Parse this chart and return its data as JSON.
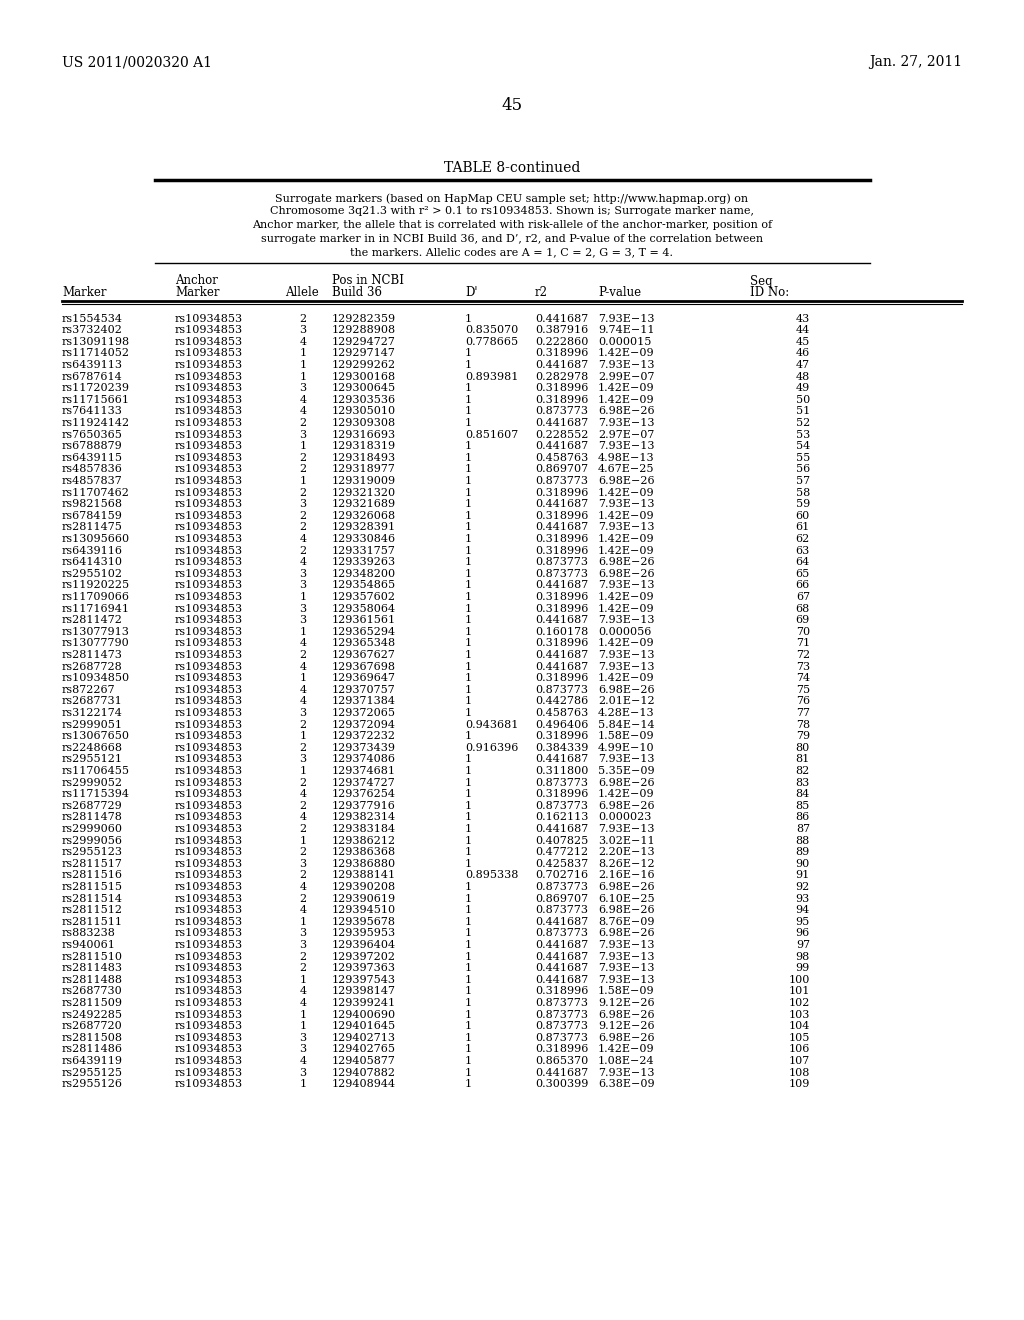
{
  "header_left": "US 2011/0020320 A1",
  "header_right": "Jan. 27, 2011",
  "page_number": "45",
  "table_title": "TABLE 8-continued",
  "caption_lines": [
    "Surrogate markers (based on HapMap CEU sample set; http://www.hapmap.org) on",
    "Chromosome 3q21.3 with r² > 0.1 to rs10934853. Shown is; Surrogate marker name,",
    "Anchor marker, the allele that is correlated with risk-allele of the anchor-marker, position of",
    "surrogate marker in in NCBI Build 36, and D’, r2, and P-value of the correlation between",
    "the markers. Allelic codes are A = 1, C = 2, G = 3, T = 4."
  ],
  "rows": [
    [
      "rs1554534",
      "rs10934853",
      "2",
      "129282359",
      "1",
      "0.441687",
      "7.93E−13",
      "43"
    ],
    [
      "rs3732402",
      "rs10934853",
      "3",
      "129288908",
      "0.835070",
      "0.387916",
      "9.74E−11",
      "44"
    ],
    [
      "rs13091198",
      "rs10934853",
      "4",
      "129294727",
      "0.778665",
      "0.222860",
      "0.000015",
      "45"
    ],
    [
      "rs11714052",
      "rs10934853",
      "1",
      "129297147",
      "1",
      "0.318996",
      "1.42E−09",
      "46"
    ],
    [
      "rs6439113",
      "rs10934853",
      "1",
      "129299262",
      "1",
      "0.441687",
      "7.93E−13",
      "47"
    ],
    [
      "rs6787614",
      "rs10934853",
      "1",
      "129300168",
      "0.893981",
      "0.282978",
      "2.99E−07",
      "48"
    ],
    [
      "rs11720239",
      "rs10934853",
      "3",
      "129300645",
      "1",
      "0.318996",
      "1.42E−09",
      "49"
    ],
    [
      "rs11715661",
      "rs10934853",
      "4",
      "129303536",
      "1",
      "0.318996",
      "1.42E−09",
      "50"
    ],
    [
      "rs7641133",
      "rs10934853",
      "4",
      "129305010",
      "1",
      "0.873773",
      "6.98E−26",
      "51"
    ],
    [
      "rs11924142",
      "rs10934853",
      "2",
      "129309308",
      "1",
      "0.441687",
      "7.93E−13",
      "52"
    ],
    [
      "rs7650365",
      "rs10934853",
      "3",
      "129316693",
      "0.851607",
      "0.228552",
      "2.97E−07",
      "53"
    ],
    [
      "rs6788879",
      "rs10934853",
      "1",
      "129318319",
      "1",
      "0.441687",
      "7.93E−13",
      "54"
    ],
    [
      "rs6439115",
      "rs10934853",
      "2",
      "129318493",
      "1",
      "0.458763",
      "4.98E−13",
      "55"
    ],
    [
      "rs4857836",
      "rs10934853",
      "2",
      "129318977",
      "1",
      "0.869707",
      "4.67E−25",
      "56"
    ],
    [
      "rs4857837",
      "rs10934853",
      "1",
      "129319009",
      "1",
      "0.873773",
      "6.98E−26",
      "57"
    ],
    [
      "rs11707462",
      "rs10934853",
      "2",
      "129321320",
      "1",
      "0.318996",
      "1.42E−09",
      "58"
    ],
    [
      "rs9821568",
      "rs10934853",
      "3",
      "129321689",
      "1",
      "0.441687",
      "7.93E−13",
      "59"
    ],
    [
      "rs6784159",
      "rs10934853",
      "2",
      "129326068",
      "1",
      "0.318996",
      "1.42E−09",
      "60"
    ],
    [
      "rs2811475",
      "rs10934853",
      "2",
      "129328391",
      "1",
      "0.441687",
      "7.93E−13",
      "61"
    ],
    [
      "rs13095660",
      "rs10934853",
      "4",
      "129330846",
      "1",
      "0.318996",
      "1.42E−09",
      "62"
    ],
    [
      "rs6439116",
      "rs10934853",
      "2",
      "129331757",
      "1",
      "0.318996",
      "1.42E−09",
      "63"
    ],
    [
      "rs6414310",
      "rs10934853",
      "4",
      "129339263",
      "1",
      "0.873773",
      "6.98E−26",
      "64"
    ],
    [
      "rs2955102",
      "rs10934853",
      "3",
      "129348200",
      "1",
      "0.873773",
      "6.98E−26",
      "65"
    ],
    [
      "rs11920225",
      "rs10934853",
      "3",
      "129354865",
      "1",
      "0.441687",
      "7.93E−13",
      "66"
    ],
    [
      "rs11709066",
      "rs10934853",
      "1",
      "129357602",
      "1",
      "0.318996",
      "1.42E−09",
      "67"
    ],
    [
      "rs11716941",
      "rs10934853",
      "3",
      "129358064",
      "1",
      "0.318996",
      "1.42E−09",
      "68"
    ],
    [
      "rs2811472",
      "rs10934853",
      "3",
      "129361561",
      "1",
      "0.441687",
      "7.93E−13",
      "69"
    ],
    [
      "rs13077913",
      "rs10934853",
      "1",
      "129365294",
      "1",
      "0.160178",
      "0.000056",
      "70"
    ],
    [
      "rs13077790",
      "rs10934853",
      "4",
      "129365348",
      "1",
      "0.318996",
      "1.42E−09",
      "71"
    ],
    [
      "rs2811473",
      "rs10934853",
      "2",
      "129367627",
      "1",
      "0.441687",
      "7.93E−13",
      "72"
    ],
    [
      "rs2687728",
      "rs10934853",
      "4",
      "129367698",
      "1",
      "0.441687",
      "7.93E−13",
      "73"
    ],
    [
      "rs10934850",
      "rs10934853",
      "1",
      "129369647",
      "1",
      "0.318996",
      "1.42E−09",
      "74"
    ],
    [
      "rs872267",
      "rs10934853",
      "4",
      "129370757",
      "1",
      "0.873773",
      "6.98E−26",
      "75"
    ],
    [
      "rs2687731",
      "rs10934853",
      "4",
      "129371384",
      "1",
      "0.442786",
      "2.01E−12",
      "76"
    ],
    [
      "rs3122174",
      "rs10934853",
      "3",
      "129372065",
      "1",
      "0.458763",
      "4.28E−13",
      "77"
    ],
    [
      "rs2999051",
      "rs10934853",
      "2",
      "129372094",
      "0.943681",
      "0.496406",
      "5.84E−14",
      "78"
    ],
    [
      "rs13067650",
      "rs10934853",
      "1",
      "129372232",
      "1",
      "0.318996",
      "1.58E−09",
      "79"
    ],
    [
      "rs2248668",
      "rs10934853",
      "2",
      "129373439",
      "0.916396",
      "0.384339",
      "4.99E−10",
      "80"
    ],
    [
      "rs2955121",
      "rs10934853",
      "3",
      "129374086",
      "1",
      "0.441687",
      "7.93E−13",
      "81"
    ],
    [
      "rs11706455",
      "rs10934853",
      "1",
      "129374681",
      "1",
      "0.311800",
      "5.35E−09",
      "82"
    ],
    [
      "rs2999052",
      "rs10934853",
      "2",
      "129374727",
      "1",
      "0.873773",
      "6.98E−26",
      "83"
    ],
    [
      "rs11715394",
      "rs10934853",
      "4",
      "129376254",
      "1",
      "0.318996",
      "1.42E−09",
      "84"
    ],
    [
      "rs2687729",
      "rs10934853",
      "2",
      "129377916",
      "1",
      "0.873773",
      "6.98E−26",
      "85"
    ],
    [
      "rs2811478",
      "rs10934853",
      "4",
      "129382314",
      "1",
      "0.162113",
      "0.000023",
      "86"
    ],
    [
      "rs2999060",
      "rs10934853",
      "2",
      "129383184",
      "1",
      "0.441687",
      "7.93E−13",
      "87"
    ],
    [
      "rs2999056",
      "rs10934853",
      "1",
      "129386212",
      "1",
      "0.407825",
      "3.02E−11",
      "88"
    ],
    [
      "rs2955123",
      "rs10934853",
      "2",
      "129386368",
      "1",
      "0.477212",
      "2.20E−13",
      "89"
    ],
    [
      "rs2811517",
      "rs10934853",
      "3",
      "129386880",
      "1",
      "0.425837",
      "8.26E−12",
      "90"
    ],
    [
      "rs2811516",
      "rs10934853",
      "2",
      "129388141",
      "0.895338",
      "0.702716",
      "2.16E−16",
      "91"
    ],
    [
      "rs2811515",
      "rs10934853",
      "4",
      "129390208",
      "1",
      "0.873773",
      "6.98E−26",
      "92"
    ],
    [
      "rs2811514",
      "rs10934853",
      "2",
      "129390619",
      "1",
      "0.869707",
      "6.10E−25",
      "93"
    ],
    [
      "rs2811512",
      "rs10934853",
      "4",
      "129394510",
      "1",
      "0.873773",
      "6.98E−26",
      "94"
    ],
    [
      "rs2811511",
      "rs10934853",
      "1",
      "129395678",
      "1",
      "0.441687",
      "8.76E−09",
      "95"
    ],
    [
      "rs883238",
      "rs10934853",
      "3",
      "129395953",
      "1",
      "0.873773",
      "6.98E−26",
      "96"
    ],
    [
      "rs940061",
      "rs10934853",
      "3",
      "129396404",
      "1",
      "0.441687",
      "7.93E−13",
      "97"
    ],
    [
      "rs2811510",
      "rs10934853",
      "2",
      "129397202",
      "1",
      "0.441687",
      "7.93E−13",
      "98"
    ],
    [
      "rs2811483",
      "rs10934853",
      "2",
      "129397363",
      "1",
      "0.441687",
      "7.93E−13",
      "99"
    ],
    [
      "rs2811488",
      "rs10934853",
      "1",
      "129397543",
      "1",
      "0.441687",
      "7.93E−13",
      "100"
    ],
    [
      "rs2687730",
      "rs10934853",
      "4",
      "129398147",
      "1",
      "0.318996",
      "1.58E−09",
      "101"
    ],
    [
      "rs2811509",
      "rs10934853",
      "4",
      "129399241",
      "1",
      "0.873773",
      "9.12E−26",
      "102"
    ],
    [
      "rs2492285",
      "rs10934853",
      "1",
      "129400690",
      "1",
      "0.873773",
      "6.98E−26",
      "103"
    ],
    [
      "rs2687720",
      "rs10934853",
      "1",
      "129401645",
      "1",
      "0.873773",
      "9.12E−26",
      "104"
    ],
    [
      "rs2811508",
      "rs10934853",
      "3",
      "129402713",
      "1",
      "0.873773",
      "6.98E−26",
      "105"
    ],
    [
      "rs2811486",
      "rs10934853",
      "3",
      "129402765",
      "1",
      "0.318996",
      "1.42E−09",
      "106"
    ],
    [
      "rs6439119",
      "rs10934853",
      "4",
      "129405877",
      "1",
      "0.865370",
      "1.08E−24",
      "107"
    ],
    [
      "rs2955125",
      "rs10934853",
      "3",
      "129407882",
      "1",
      "0.441687",
      "7.93E−13",
      "108"
    ],
    [
      "rs2955126",
      "rs10934853",
      "1",
      "129408944",
      "1",
      "0.300399",
      "6.38E−09",
      "109"
    ]
  ]
}
